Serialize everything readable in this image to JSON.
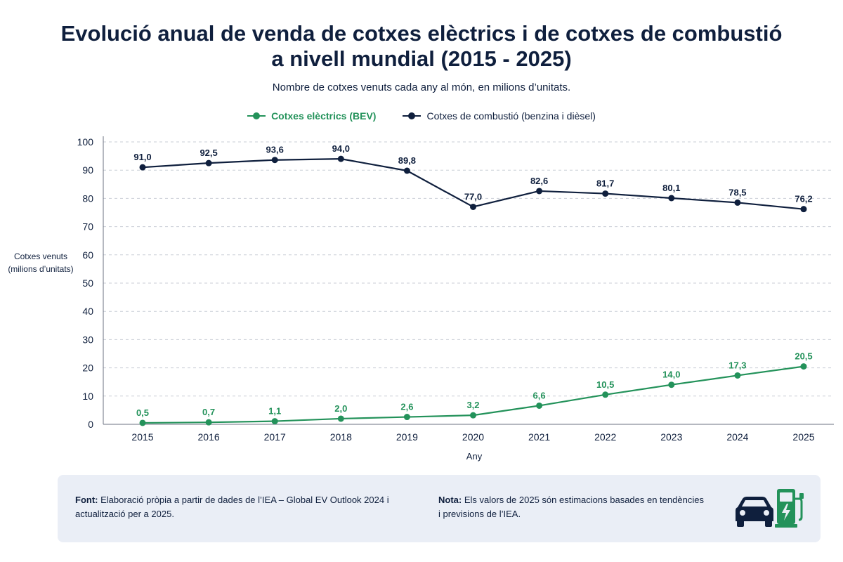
{
  "header": {
    "title_line1": "Evolució anual de venda de cotxes elèctrics i de cotxes de combustió",
    "title_line2": "a nivell mundial (2015 - 2025)",
    "subtitle": "Nombre de cotxes venuts cada any al món, en milions d’unitats."
  },
  "legend": {
    "ev": "Cotxes elèctrics (BEV)",
    "ice": "Cotxes de combustió (benzina i dièsel)"
  },
  "axes": {
    "ylabel_line1": "Cotxes venuts",
    "ylabel_line2": "(milions d’unitats)",
    "xlabel": "Any"
  },
  "colors": {
    "ev": "#23925a",
    "ice": "#0f1f3d",
    "grid": "#c9cdd6"
  },
  "chart_data": {
    "type": "line",
    "title": "Evolució anual de venda de cotxes elèctrics i de cotxes de combustió a nivell mundial (2015 - 2025)",
    "subtitle": "Nombre de cotxes venuts cada any al món, en milions d’unitats.",
    "xlabel": "Any",
    "ylabel": "Cotxes venuts (milions d’unitats)",
    "ylim": [
      0,
      100
    ],
    "yticks": [
      0,
      10,
      20,
      30,
      40,
      50,
      60,
      70,
      80,
      90,
      100
    ],
    "grid": "horizontal dashed",
    "legend_position": "top-center",
    "x": [
      "2015",
      "2016",
      "2017",
      "2018",
      "2019",
      "2020",
      "2021",
      "2022",
      "2023",
      "2024",
      "2025"
    ],
    "series": [
      {
        "name": "Cotxes elèctrics (BEV)",
        "key": "ev",
        "values": [
          0.5,
          0.7,
          1.1,
          2.0,
          2.6,
          3.2,
          6.6,
          10.5,
          14.0,
          17.3,
          20.5
        ],
        "labels": [
          "0,5",
          "0,7",
          "1,1",
          "2,0",
          "2,6",
          "3,2",
          "6,6",
          "10,5",
          "14,0",
          "17,3",
          "20,5"
        ]
      },
      {
        "name": "Cotxes de combustió (benzina i dièsel)",
        "key": "ice",
        "values": [
          91.0,
          92.5,
          93.6,
          94.0,
          89.8,
          77.0,
          82.6,
          81.7,
          80.1,
          78.5,
          76.2
        ],
        "labels": [
          "91,0",
          "92,5",
          "93,6",
          "94,0",
          "89,8",
          "77,0",
          "82,6",
          "81,7",
          "80,1",
          "78,5",
          "76,2"
        ]
      }
    ]
  },
  "footer": {
    "source_label": "Font:",
    "source_text": "Elaboració pròpia a partir de dades de l’IEA – Global EV Outlook 2024 i actualització per a 2025.",
    "note_label": "Nota:",
    "note_text": "Els valors de 2025 són estimacions basades en tendències i previsions de l’IEA.",
    "icon_names": [
      "car-icon",
      "ev-charger-icon"
    ]
  }
}
